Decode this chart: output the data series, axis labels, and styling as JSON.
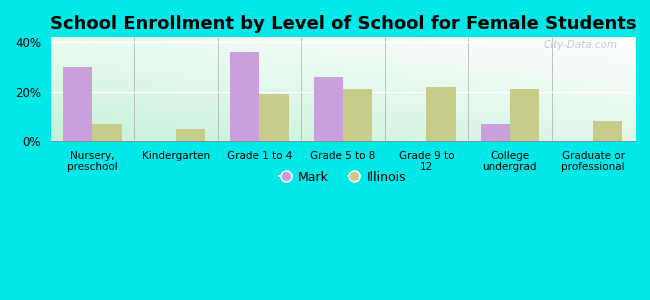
{
  "title": "School Enrollment by Level of School for Female Students",
  "categories": [
    "Nursery,\npreschool",
    "Kindergarten",
    "Grade 1 to 4",
    "Grade 5 to 8",
    "Grade 9 to\n12",
    "College\nundergrad",
    "Graduate or\nprofessional"
  ],
  "mark_values": [
    30,
    0,
    36,
    26,
    0,
    7,
    0
  ],
  "illinois_values": [
    7,
    5,
    19,
    21,
    22,
    21,
    8
  ],
  "mark_color": "#c9a0dc",
  "illinois_color": "#c8cc8a",
  "background_outer": "#00e8e8",
  "ylim": [
    0,
    42
  ],
  "yticks": [
    0,
    20,
    40
  ],
  "ytick_labels": [
    "0%",
    "20%",
    "40%"
  ],
  "bar_width": 0.35,
  "title_fontsize": 13,
  "legend_labels": [
    "Mark",
    "Illinois"
  ],
  "watermark": "City-Data.com"
}
